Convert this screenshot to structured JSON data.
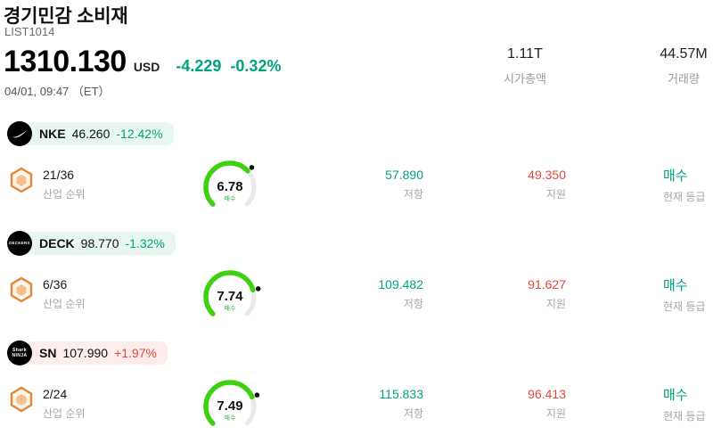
{
  "header": {
    "title": "경기민감 소비재",
    "list_id": "LIST1014",
    "price": "1310.130",
    "currency": "USD",
    "change_value": "-4.229",
    "change_pct": "-0.32%",
    "datetime": "04/01, 09:47 （ET）",
    "stats": [
      {
        "value": "1.11T",
        "label": "시가총액"
      },
      {
        "value": "44.57M",
        "label": "거래량"
      }
    ]
  },
  "labels": {
    "industry_rank": "산업 순위",
    "resistance": "저항",
    "support": "지원",
    "current_rating": "현재 등급"
  },
  "stocks": [
    {
      "ticker": "NKE",
      "price": "46.260",
      "change": "-12.42%",
      "direction": "down",
      "logo": {
        "type": "swoosh",
        "name": "nike"
      },
      "rank": "21/36",
      "gauge": {
        "value": 6.78,
        "label": "매수"
      },
      "resistance": "57.890",
      "support": "49.350",
      "rating": "매수"
    },
    {
      "ticker": "DECK",
      "price": "98.770",
      "change": "-1.32%",
      "direction": "down",
      "logo": {
        "type": "text",
        "lines": [
          "DECKERS"
        ]
      },
      "rank": "6/36",
      "gauge": {
        "value": 7.74,
        "label": "매수"
      },
      "resistance": "109.482",
      "support": "91.627",
      "rating": "매수"
    },
    {
      "ticker": "SN",
      "price": "107.990",
      "change": "+1.97%",
      "direction": "up",
      "logo": {
        "type": "text",
        "lines": [
          "Shark",
          "NINJA"
        ]
      },
      "rank": "2/24",
      "gauge": {
        "value": 7.49,
        "label": "매수"
      },
      "resistance": "115.833",
      "support": "96.413",
      "rating": "매수"
    }
  ],
  "colors": {
    "teal": "#00a37f",
    "red": "#e2483a",
    "gauge_green": "#3ed112",
    "pill_down_bg": "#e8f6f0",
    "pill_up_bg": "#fdecec",
    "label_gray": "#a6a6a6"
  },
  "layout_numbers": {
    "gauge_min": 0,
    "gauge_max": 10
  }
}
